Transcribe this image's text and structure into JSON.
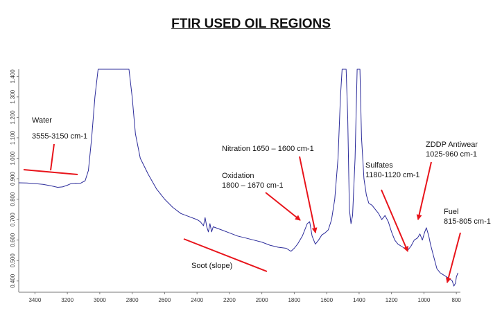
{
  "chart_data": {
    "type": "line",
    "title": "FTIR USED OIL REGIONS",
    "xlabel": "",
    "ylabel": "",
    "x_reversed": true,
    "xlim": [
      3500,
      775
    ],
    "ylim": [
      0.345,
      1.435
    ],
    "x_ticks": [
      3400,
      3200,
      3000,
      2800,
      2600,
      2400,
      2200,
      2000,
      1800,
      1600,
      1400,
      1200,
      1000,
      800
    ],
    "y_ticks": [
      0.4,
      0.5,
      0.6,
      0.7,
      0.8,
      0.9,
      1.0,
      1.1,
      1.2,
      1.3,
      1.4
    ],
    "y_tick_labels": [
      "0.400",
      "0.500",
      "0.600",
      "0.700",
      "0.800",
      "0.900",
      "1.000",
      "1.100",
      "1.200",
      "1.300",
      "1.400"
    ],
    "grid": false,
    "line_color": "#2b2b9a",
    "annotation_color": "#e8141b",
    "series": [
      {
        "name": "",
        "points": [
          [
            3500,
            0.88
          ],
          [
            3450,
            0.879
          ],
          [
            3400,
            0.876
          ],
          [
            3350,
            0.872
          ],
          [
            3300,
            0.865
          ],
          [
            3260,
            0.858
          ],
          [
            3230,
            0.86
          ],
          [
            3200,
            0.868
          ],
          [
            3180,
            0.875
          ],
          [
            3150,
            0.878
          ],
          [
            3120,
            0.877
          ],
          [
            3090,
            0.89
          ],
          [
            3070,
            0.94
          ],
          [
            3050,
            1.1
          ],
          [
            3030,
            1.3
          ],
          [
            3010,
            1.44
          ],
          [
            2820,
            1.44
          ],
          [
            2800,
            1.3
          ],
          [
            2780,
            1.12
          ],
          [
            2750,
            1.0
          ],
          [
            2700,
            0.92
          ],
          [
            2650,
            0.85
          ],
          [
            2600,
            0.8
          ],
          [
            2550,
            0.76
          ],
          [
            2500,
            0.73
          ],
          [
            2450,
            0.715
          ],
          [
            2400,
            0.7
          ],
          [
            2380,
            0.69
          ],
          [
            2360,
            0.67
          ],
          [
            2350,
            0.71
          ],
          [
            2340,
            0.665
          ],
          [
            2330,
            0.64
          ],
          [
            2320,
            0.68
          ],
          [
            2310,
            0.64
          ],
          [
            2300,
            0.665
          ],
          [
            2250,
            0.65
          ],
          [
            2200,
            0.635
          ],
          [
            2150,
            0.62
          ],
          [
            2100,
            0.61
          ],
          [
            2050,
            0.6
          ],
          [
            2000,
            0.59
          ],
          [
            1950,
            0.575
          ],
          [
            1900,
            0.565
          ],
          [
            1850,
            0.56
          ],
          [
            1820,
            0.545
          ],
          [
            1800,
            0.56
          ],
          [
            1780,
            0.58
          ],
          [
            1750,
            0.62
          ],
          [
            1720,
            0.68
          ],
          [
            1705,
            0.69
          ],
          [
            1690,
            0.62
          ],
          [
            1670,
            0.58
          ],
          [
            1650,
            0.6
          ],
          [
            1630,
            0.625
          ],
          [
            1610,
            0.635
          ],
          [
            1590,
            0.65
          ],
          [
            1570,
            0.7
          ],
          [
            1550,
            0.8
          ],
          [
            1530,
            1.0
          ],
          [
            1515,
            1.3
          ],
          [
            1505,
            1.44
          ],
          [
            1480,
            1.44
          ],
          [
            1470,
            1.2
          ],
          [
            1460,
            0.75
          ],
          [
            1450,
            0.68
          ],
          [
            1440,
            0.72
          ],
          [
            1425,
            1.0
          ],
          [
            1412,
            1.44
          ],
          [
            1395,
            1.44
          ],
          [
            1385,
            1.1
          ],
          [
            1370,
            0.9
          ],
          [
            1355,
            0.82
          ],
          [
            1340,
            0.78
          ],
          [
            1320,
            0.77
          ],
          [
            1300,
            0.75
          ],
          [
            1280,
            0.73
          ],
          [
            1260,
            0.7
          ],
          [
            1240,
            0.72
          ],
          [
            1220,
            0.69
          ],
          [
            1200,
            0.64
          ],
          [
            1180,
            0.6
          ],
          [
            1160,
            0.58
          ],
          [
            1140,
            0.57
          ],
          [
            1120,
            0.56
          ],
          [
            1100,
            0.55
          ],
          [
            1080,
            0.57
          ],
          [
            1060,
            0.6
          ],
          [
            1040,
            0.61
          ],
          [
            1025,
            0.63
          ],
          [
            1010,
            0.6
          ],
          [
            995,
            0.64
          ],
          [
            985,
            0.66
          ],
          [
            970,
            0.62
          ],
          [
            960,
            0.58
          ],
          [
            940,
            0.52
          ],
          [
            920,
            0.46
          ],
          [
            900,
            0.44
          ],
          [
            880,
            0.43
          ],
          [
            860,
            0.42
          ],
          [
            840,
            0.41
          ],
          [
            825,
            0.4
          ],
          [
            815,
            0.375
          ],
          [
            805,
            0.39
          ],
          [
            800,
            0.42
          ],
          [
            790,
            0.44
          ]
        ]
      }
    ],
    "annotations": [
      {
        "lines": [
          "Water",
          "3555-3150 cm-1"
        ]
      },
      {
        "lines": [
          "Nitration 1650 – 1600 cm-1"
        ]
      },
      {
        "lines": [
          "Oxidation",
          "1800 – 1670 cm-1"
        ]
      },
      {
        "lines": [
          "Sulfates",
          "1180-1120 cm-1"
        ]
      },
      {
        "lines": [
          "ZDDP Antiwear",
          "1025-960 cm-1"
        ]
      },
      {
        "lines": [
          "Fuel",
          "815-805 cm-1"
        ]
      },
      {
        "lines": [
          "Soot (slope)"
        ]
      }
    ]
  }
}
